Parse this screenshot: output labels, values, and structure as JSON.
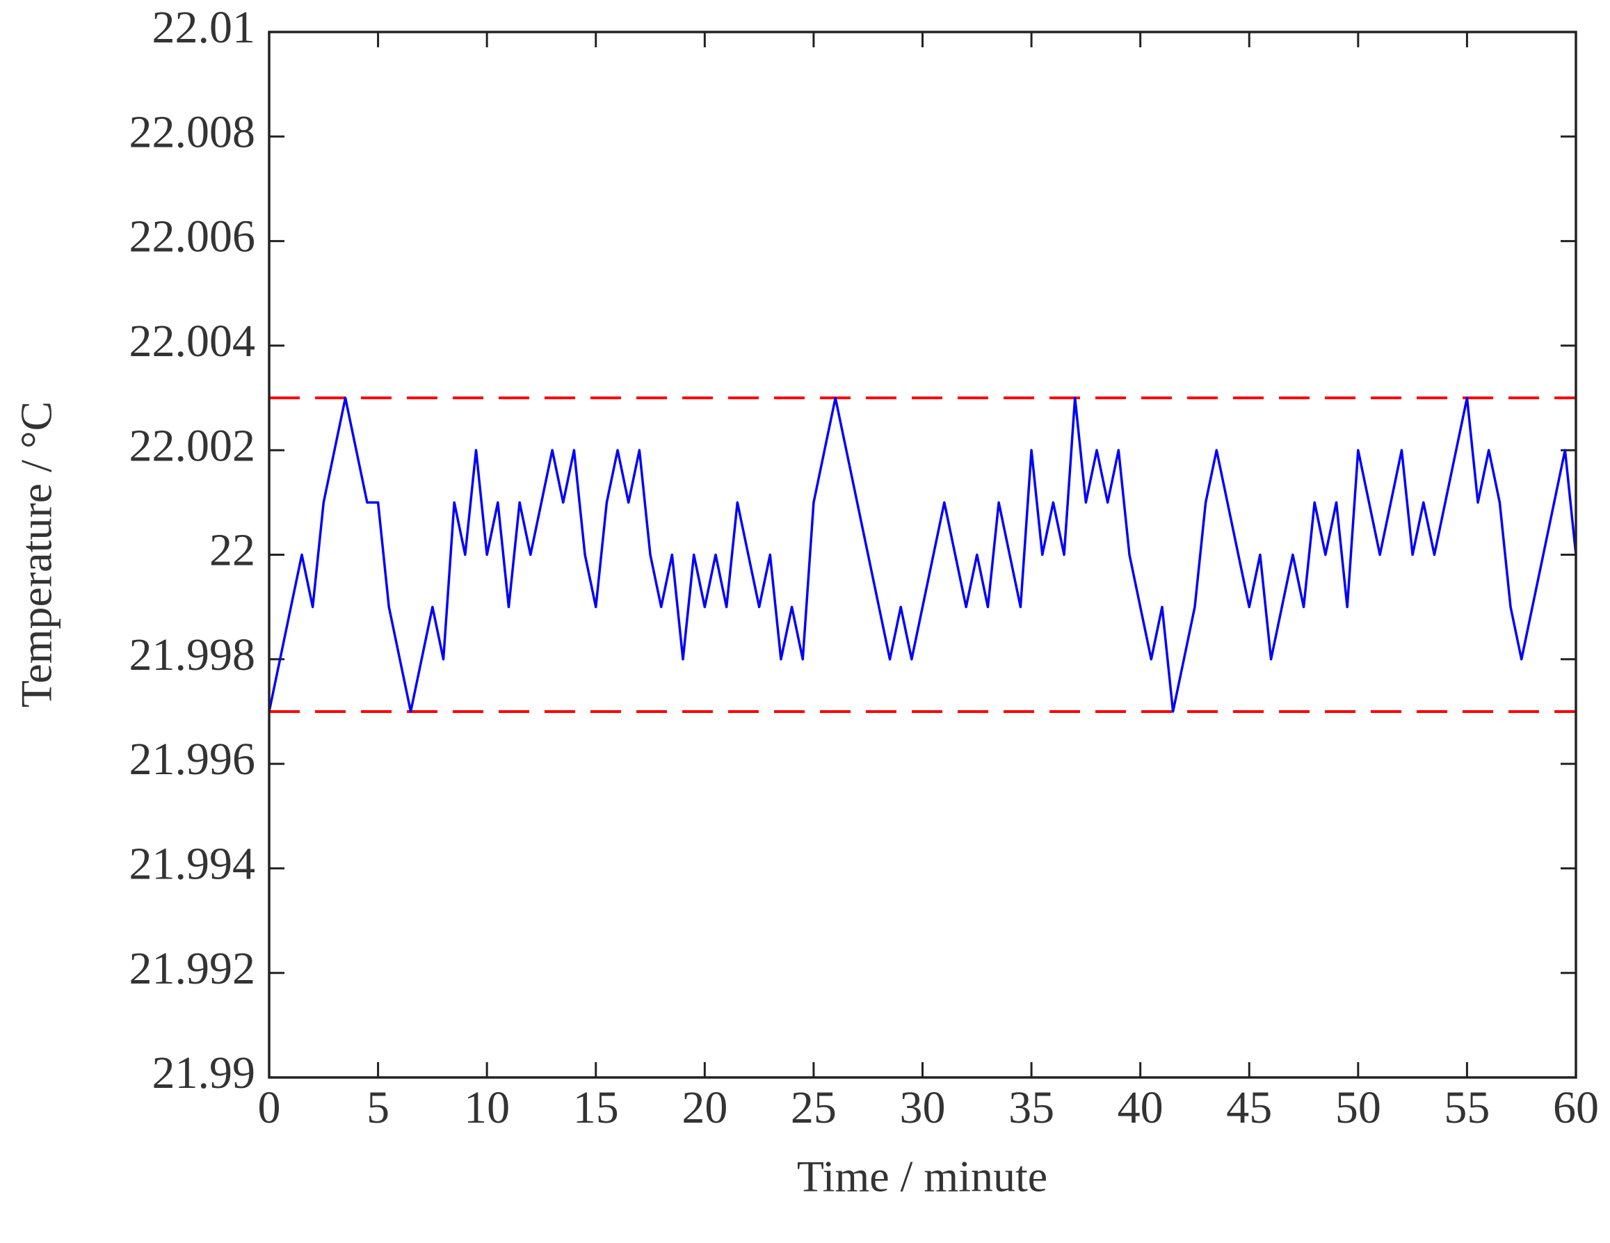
{
  "chart_data": {
    "type": "line",
    "x_label": "Time / minute",
    "y_label": "Temperature / °C",
    "xlim": [
      0,
      60
    ],
    "ylim": [
      21.99,
      22.01
    ],
    "xticks": [
      0,
      5,
      10,
      15,
      20,
      25,
      30,
      35,
      40,
      45,
      50,
      55,
      60
    ],
    "yticks": [
      21.99,
      21.992,
      21.994,
      21.996,
      21.998,
      22,
      22.002,
      22.004,
      22.006,
      22.008,
      22.01
    ],
    "grid": false,
    "x": [
      0,
      0.5,
      1,
      1.5,
      2,
      2.5,
      3,
      3.5,
      4,
      4.5,
      5,
      5.5,
      6,
      6.5,
      7,
      7.5,
      8,
      8.5,
      9,
      9.5,
      10,
      10.5,
      11,
      11.5,
      12,
      12.5,
      13,
      13.5,
      14,
      14.5,
      15,
      15.5,
      16,
      16.5,
      17,
      17.5,
      18,
      18.5,
      19,
      19.5,
      20,
      20.5,
      21,
      21.5,
      22,
      22.5,
      23,
      23.5,
      24,
      24.5,
      25,
      25.5,
      26,
      26.5,
      27,
      27.5,
      28,
      28.5,
      29,
      29.5,
      30,
      30.5,
      31,
      31.5,
      32,
      32.5,
      33,
      33.5,
      34,
      34.5,
      35,
      35.5,
      36,
      36.5,
      37,
      37.5,
      38,
      38.5,
      39,
      39.5,
      40,
      40.5,
      41,
      41.5,
      42,
      42.5,
      43,
      43.5,
      44,
      44.5,
      45,
      45.5,
      46,
      46.5,
      47,
      47.5,
      48,
      48.5,
      49,
      49.5,
      50,
      50.5,
      51,
      51.5,
      52,
      52.5,
      53,
      53.5,
      54,
      54.5,
      55,
      55.5,
      56,
      56.5,
      57,
      57.5,
      58,
      58.5,
      59,
      59.5,
      60
    ],
    "series": [
      {
        "color": "#0000ff",
        "values": [
          21.997,
          21.998,
          21.999,
          22.0,
          21.999,
          22.001,
          22.002,
          22.003,
          22.002,
          22.001,
          22.001,
          21.999,
          21.998,
          21.997,
          21.998,
          21.999,
          21.998,
          22.001,
          22.0,
          22.002,
          22.0,
          22.001,
          21.999,
          22.001,
          22.0,
          22.001,
          22.002,
          22.001,
          22.002,
          22.0,
          21.999,
          22.001,
          22.002,
          22.001,
          22.002,
          22.0,
          21.999,
          22.0,
          21.998,
          22.0,
          21.999,
          22.0,
          21.999,
          22.001,
          22.0,
          21.999,
          22.0,
          21.998,
          21.999,
          21.998,
          22.001,
          22.002,
          22.003,
          22.002,
          22.001,
          22.0,
          21.999,
          21.998,
          21.999,
          21.998,
          21.999,
          22.0,
          22.001,
          22.0,
          21.999,
          22.0,
          21.999,
          22.001,
          22.0,
          21.999,
          22.002,
          22.0,
          22.001,
          22.0,
          22.003,
          22.001,
          22.002,
          22.001,
          22.002,
          22.0,
          21.999,
          21.998,
          21.999,
          21.997,
          21.998,
          21.999,
          22.001,
          22.002,
          22.001,
          22.0,
          21.999,
          22.0,
          21.998,
          21.999,
          22.0,
          21.999,
          22.001,
          22.0,
          22.001,
          21.999,
          22.002,
          22.001,
          22.0,
          22.001,
          22.002,
          22.0,
          22.001,
          22.0,
          22.001,
          22.002,
          22.003,
          22.001,
          22.002,
          22.001,
          21.999,
          21.998,
          21.999,
          22.0,
          22.001,
          22.002,
          22.0
        ]
      }
    ],
    "hlines": [
      {
        "value": 22.003,
        "color": "#ff0000",
        "dashed": true
      },
      {
        "value": 21.997,
        "color": "#ff0000",
        "dashed": true
      }
    ]
  }
}
